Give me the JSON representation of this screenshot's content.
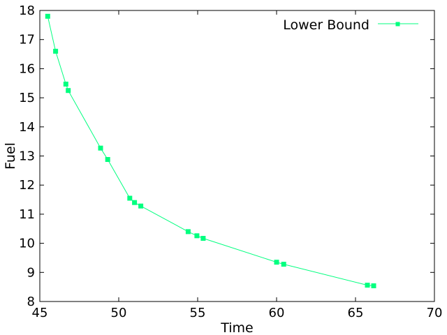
{
  "chart_data": {
    "type": "line",
    "xlabel": "Time",
    "ylabel": "Fuel",
    "xlim": [
      45,
      70
    ],
    "ylim": [
      8,
      18
    ],
    "xticks": [
      "45",
      "50",
      "55",
      "60",
      "65",
      "70"
    ],
    "yticks": [
      "8",
      "9",
      "10",
      "11",
      "12",
      "13",
      "14",
      "15",
      "16",
      "17",
      "18"
    ],
    "legend_position": "top-right",
    "grid": false,
    "series": [
      {
        "name": "Lower Bound",
        "color": "#00ff7f",
        "marker": "square",
        "x": [
          45.5,
          46.0,
          46.65,
          46.8,
          48.85,
          49.3,
          50.7,
          51.0,
          51.4,
          54.4,
          54.95,
          55.35,
          60.0,
          60.45,
          65.75,
          66.15
        ],
        "y": [
          17.8,
          16.6,
          15.47,
          15.25,
          13.27,
          12.88,
          11.55,
          11.4,
          11.28,
          10.4,
          10.26,
          10.17,
          9.35,
          9.28,
          8.56,
          8.54
        ]
      }
    ]
  }
}
